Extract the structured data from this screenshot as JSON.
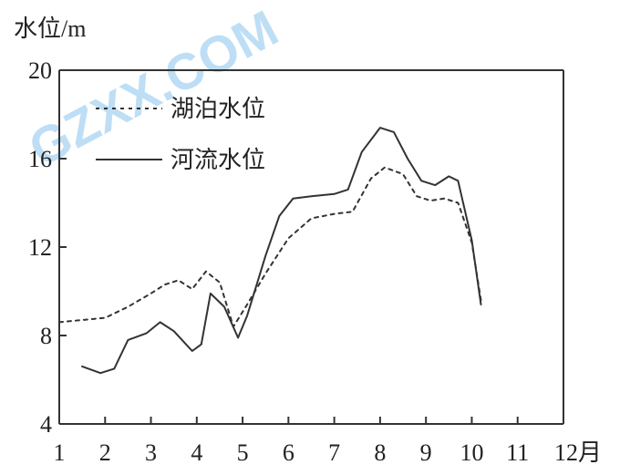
{
  "watermark": "GZXX.COM",
  "chart_data": {
    "type": "line",
    "ylabel": "水位/m",
    "xlabel": "",
    "x_ticks": [
      "1",
      "2",
      "3",
      "4",
      "5",
      "6",
      "7",
      "8",
      "9",
      "10",
      "11",
      "12月"
    ],
    "xlim": [
      1,
      12
    ],
    "ylim": [
      4,
      20
    ],
    "y_ticks": [
      4,
      8,
      12,
      16,
      20
    ],
    "grid": false,
    "legend_position": "top-left",
    "series": [
      {
        "name": "湖泊水位",
        "style": "dashed",
        "color": "#333333",
        "points": [
          [
            1.0,
            8.6
          ],
          [
            1.5,
            8.7
          ],
          [
            2.0,
            8.8
          ],
          [
            2.5,
            9.3
          ],
          [
            3.0,
            9.9
          ],
          [
            3.3,
            10.3
          ],
          [
            3.6,
            10.5
          ],
          [
            3.9,
            10.1
          ],
          [
            4.2,
            10.9
          ],
          [
            4.5,
            10.4
          ],
          [
            4.8,
            8.4
          ],
          [
            5.1,
            9.4
          ],
          [
            5.5,
            10.8
          ],
          [
            6.0,
            12.4
          ],
          [
            6.5,
            13.3
          ],
          [
            7.0,
            13.5
          ],
          [
            7.4,
            13.6
          ],
          [
            7.8,
            15.1
          ],
          [
            8.1,
            15.6
          ],
          [
            8.5,
            15.3
          ],
          [
            8.8,
            14.3
          ],
          [
            9.1,
            14.1
          ],
          [
            9.4,
            14.2
          ],
          [
            9.7,
            14.0
          ],
          [
            10.0,
            12.2
          ],
          [
            10.2,
            9.6
          ]
        ]
      },
      {
        "name": "河流水位",
        "style": "solid",
        "color": "#333333",
        "points": [
          [
            1.5,
            6.6
          ],
          [
            1.9,
            6.3
          ],
          [
            2.2,
            6.5
          ],
          [
            2.5,
            7.8
          ],
          [
            2.9,
            8.1
          ],
          [
            3.2,
            8.6
          ],
          [
            3.5,
            8.2
          ],
          [
            3.9,
            7.3
          ],
          [
            4.1,
            7.6
          ],
          [
            4.3,
            9.9
          ],
          [
            4.6,
            9.3
          ],
          [
            4.9,
            7.9
          ],
          [
            5.1,
            8.9
          ],
          [
            5.5,
            11.6
          ],
          [
            5.8,
            13.4
          ],
          [
            6.1,
            14.2
          ],
          [
            6.5,
            14.3
          ],
          [
            7.0,
            14.4
          ],
          [
            7.3,
            14.6
          ],
          [
            7.6,
            16.3
          ],
          [
            8.0,
            17.4
          ],
          [
            8.3,
            17.2
          ],
          [
            8.6,
            16.0
          ],
          [
            8.9,
            15.0
          ],
          [
            9.2,
            14.8
          ],
          [
            9.5,
            15.2
          ],
          [
            9.7,
            15.0
          ],
          [
            10.0,
            12.3
          ],
          [
            10.2,
            9.4
          ]
        ]
      }
    ]
  }
}
